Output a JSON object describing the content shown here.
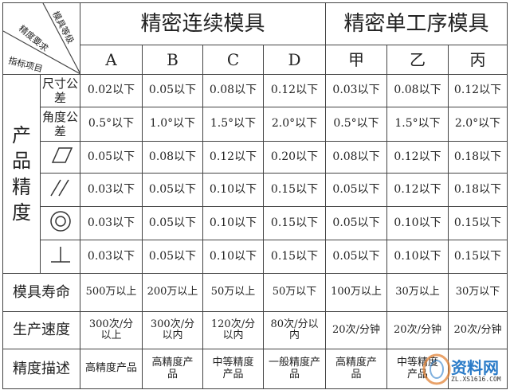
{
  "corner": {
    "grade": "模具等级",
    "requirement": "精度要求",
    "item": "指标项目"
  },
  "groups": [
    "精密连续模具",
    "精密单工序模具"
  ],
  "grades": [
    "A",
    "B",
    "C",
    "D",
    "甲",
    "乙",
    "丙"
  ],
  "product_precision_label": "产品精度",
  "precision_rows": [
    {
      "label": "尺寸公差",
      "symbol": "",
      "values": [
        "0.02以下",
        "0.05以下",
        "0.08以下",
        "0.12以下",
        "0.03以下",
        "0.08以下",
        "0.12以下"
      ]
    },
    {
      "label": "角度公差",
      "symbol": "",
      "values": [
        "0.5°以下",
        "1.0°以下",
        "1.5°以下",
        "2.0°以下",
        "0.5°以下",
        "1.5°以下",
        "2.0°以下"
      ]
    },
    {
      "label": "",
      "symbol": "flatness-icon",
      "values": [
        "0.05以下",
        "0.08以下",
        "0.12以下",
        "0.20以下",
        "0.08以下",
        "0.12以下",
        "0.18以下"
      ]
    },
    {
      "label": "",
      "symbol": "parallelism-icon",
      "values": [
        "0.03以下",
        "0.05以下",
        "0.10以下",
        "0.15以下",
        "0.05以下",
        "0.12以下",
        "0.18以下"
      ]
    },
    {
      "label": "",
      "symbol": "concentricity-icon",
      "values": [
        "0.03以下",
        "0.05以下",
        "0.10以下",
        "0.15以下",
        "0.05以下",
        "0.10以下",
        "0.15以下"
      ]
    },
    {
      "label": "",
      "symbol": "perpendicularity-icon",
      "values": [
        "0.03以下",
        "0.05以下",
        "0.10以下",
        "0.15以下",
        "0.05以下",
        "0.10以下",
        "0.15以下"
      ]
    }
  ],
  "other_rows": [
    {
      "label": "模具寿命",
      "values": [
        "500万以上",
        "200万以上",
        "50万以上",
        "50万以下",
        "100万以上",
        "30万以上",
        "30万以下"
      ]
    },
    {
      "label": "生产速度",
      "values": [
        "300次/分以上",
        "300次/分以内",
        "120次/分以内",
        "80次/分以内",
        "20次/分钟",
        "20次/分钟",
        "20次/分钟"
      ]
    },
    {
      "label": "精度描述",
      "values": [
        "高精度产品",
        "高精度产品",
        "中等精度产品",
        "一般精度产品",
        "高精度产品",
        "中等精度产品",
        ""
      ]
    }
  ],
  "watermark": {
    "text": "资料网",
    "url": "ZL.XS1616.COM"
  }
}
